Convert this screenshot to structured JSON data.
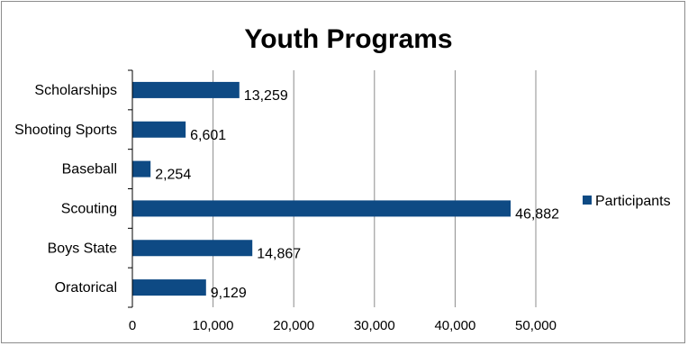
{
  "chart_data": {
    "type": "bar",
    "orientation": "horizontal",
    "title": "Youth Programs",
    "categories": [
      "Oratorical",
      "Boys State",
      "Scouting",
      "Baseball",
      "Shooting Sports",
      "Scholarships"
    ],
    "series": [
      {
        "name": "Participants",
        "values": [
          9129,
          14867,
          46882,
          2254,
          6601,
          13259
        ],
        "color": "#0e4a84"
      }
    ],
    "data_labels": [
      "9,129",
      "14,867",
      "46,882",
      "2,254",
      "6,601",
      "13,259"
    ],
    "xlim": [
      0,
      50000
    ],
    "x_ticks": [
      0,
      10000,
      20000,
      30000,
      40000,
      50000
    ],
    "x_tick_labels": [
      "0",
      "10,000",
      "20,000",
      "30,000",
      "40,000",
      "50,000"
    ],
    "xlabel": "",
    "ylabel": "",
    "grid": "vertical",
    "legend_position": "right"
  }
}
